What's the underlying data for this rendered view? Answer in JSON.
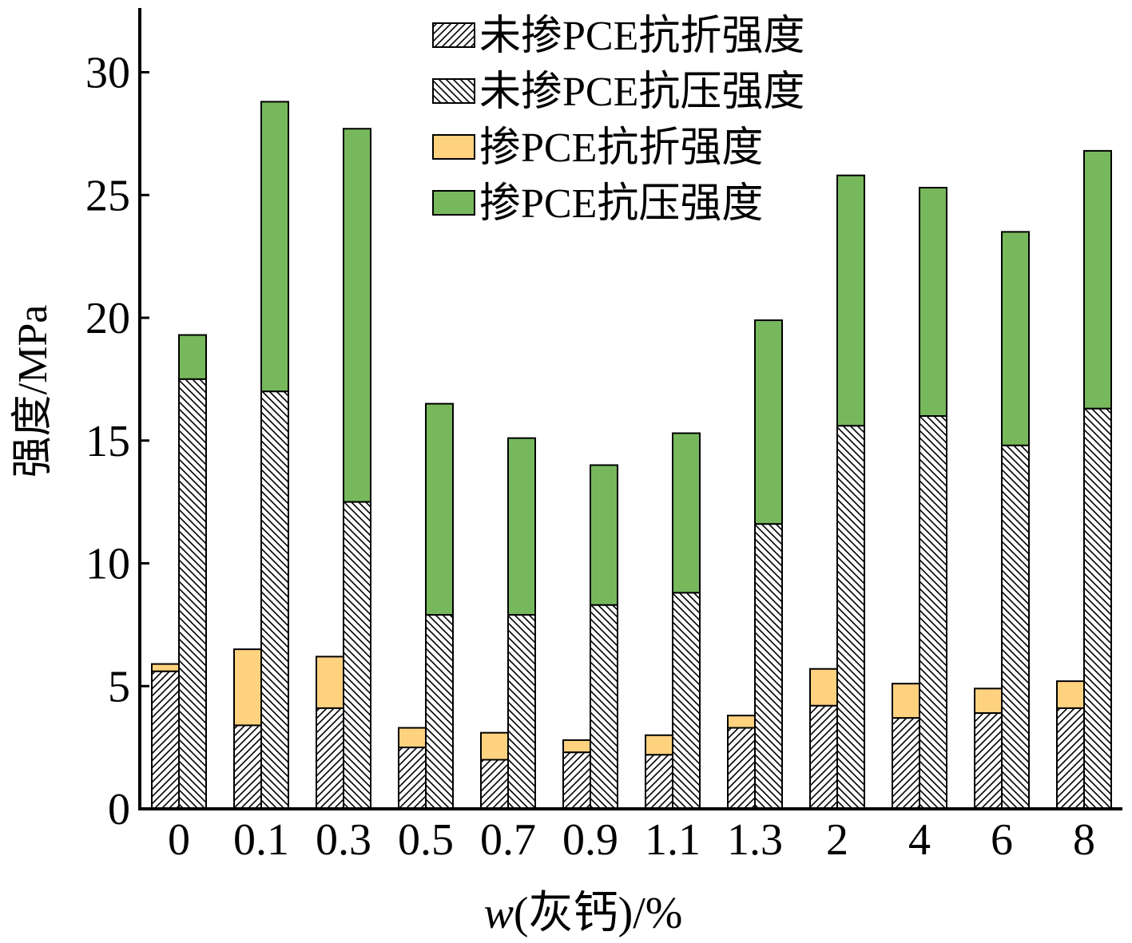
{
  "chart_data": {
    "type": "bar",
    "title": "",
    "xlabel_italic": "w",
    "xlabel_rest": "(灰钙)/%",
    "ylabel": "强度/MPa",
    "ylim": [
      0,
      32.5
    ],
    "yticks": [
      0,
      5,
      10,
      15,
      20,
      25,
      30
    ],
    "categories": [
      "0",
      "0.1",
      "0.3",
      "0.5",
      "0.7",
      "0.9",
      "1.1",
      "1.3",
      "2",
      "4",
      "6",
      "8"
    ],
    "legend_position": "top-right",
    "stacked_pairs": "flexural bar stacks the PCE value on top of the non-PCE value; compressive bar likewise",
    "series": [
      {
        "name": "未掺PCE抗折强度",
        "pattern": "hatch-diagonal-up",
        "values": [
          5.6,
          3.4,
          4.1,
          2.5,
          2.0,
          2.3,
          2.2,
          3.3,
          4.2,
          3.7,
          3.9,
          4.1
        ]
      },
      {
        "name": "未掺PCE抗压强度",
        "pattern": "hatch-diagonal-down",
        "values": [
          17.5,
          17.0,
          12.5,
          7.9,
          7.9,
          8.3,
          8.8,
          11.6,
          15.6,
          16.0,
          14.8,
          16.3
        ]
      },
      {
        "name": "掺PCE抗折强度",
        "color": "#ffd27f",
        "values": [
          5.9,
          6.5,
          6.2,
          3.3,
          3.1,
          2.8,
          3.0,
          3.8,
          5.7,
          5.1,
          4.9,
          5.2
        ]
      },
      {
        "name": "掺PCE抗压强度",
        "color": "#77b85c",
        "values": [
          19.3,
          28.8,
          27.7,
          16.5,
          15.1,
          14.0,
          15.3,
          19.9,
          25.8,
          25.3,
          23.5,
          26.8
        ]
      }
    ]
  }
}
